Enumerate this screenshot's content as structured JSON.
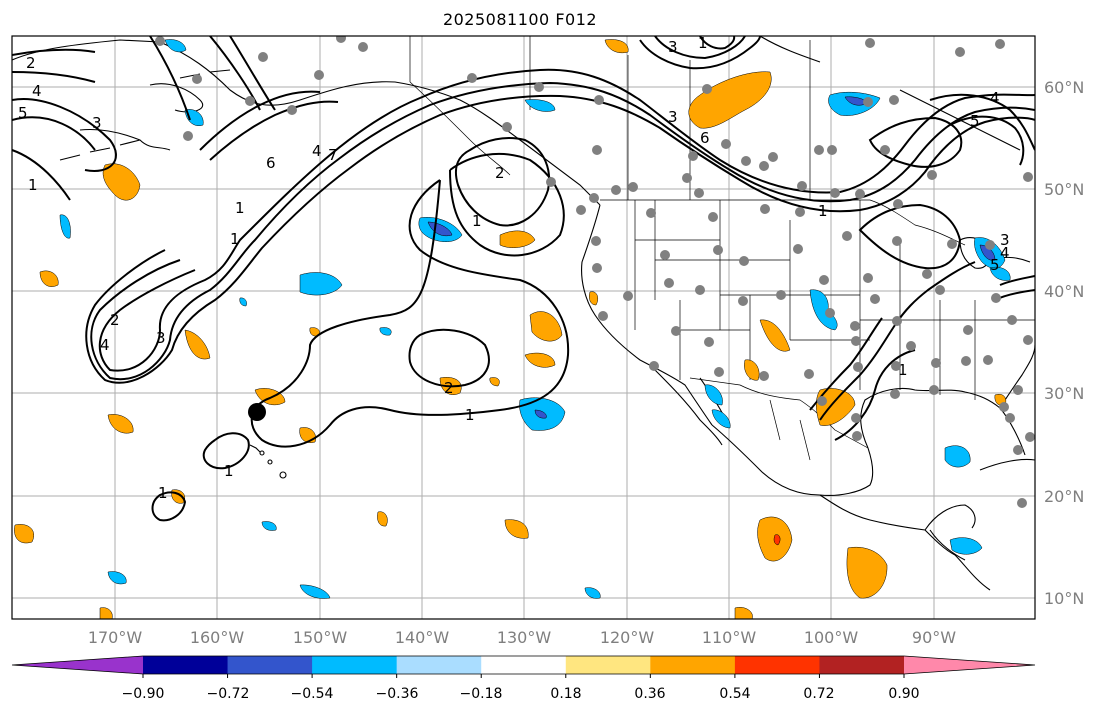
{
  "title": "2025081100 F012",
  "lat_labels": [
    "60°N",
    "50°N",
    "40°N",
    "30°N",
    "20°N",
    "10°N"
  ],
  "lon_labels": [
    "170°W",
    "160°W",
    "150°W",
    "140°W",
    "130°W",
    "120°W",
    "110°W",
    "100°W",
    "90°W"
  ],
  "colorbar": {
    "ticks": [
      "−0.90",
      "−0.72",
      "−0.54",
      "−0.36",
      "−0.18",
      "0.18",
      "0.36",
      "0.54",
      "0.72",
      "0.90"
    ],
    "colors": [
      "#9933cc",
      "#000099",
      "#3355cc",
      "#00bbff",
      "#aaddff",
      "#ffffff",
      "#ffe680",
      "#ffa500",
      "#ff3300",
      "#b22222",
      "#ff88aa"
    ]
  },
  "contour_labels": [
    "2",
    "4",
    "5",
    "3",
    "1",
    "6",
    "4",
    "7",
    "1",
    "1",
    "2",
    "4",
    "3",
    "3",
    "1",
    "1",
    "2",
    "1",
    "2",
    "1",
    "1",
    "3",
    "1",
    "6",
    "4",
    "5",
    "1",
    "4",
    "5",
    "3"
  ],
  "map_features": {
    "grid": true,
    "marker": "black-dot"
  }
}
